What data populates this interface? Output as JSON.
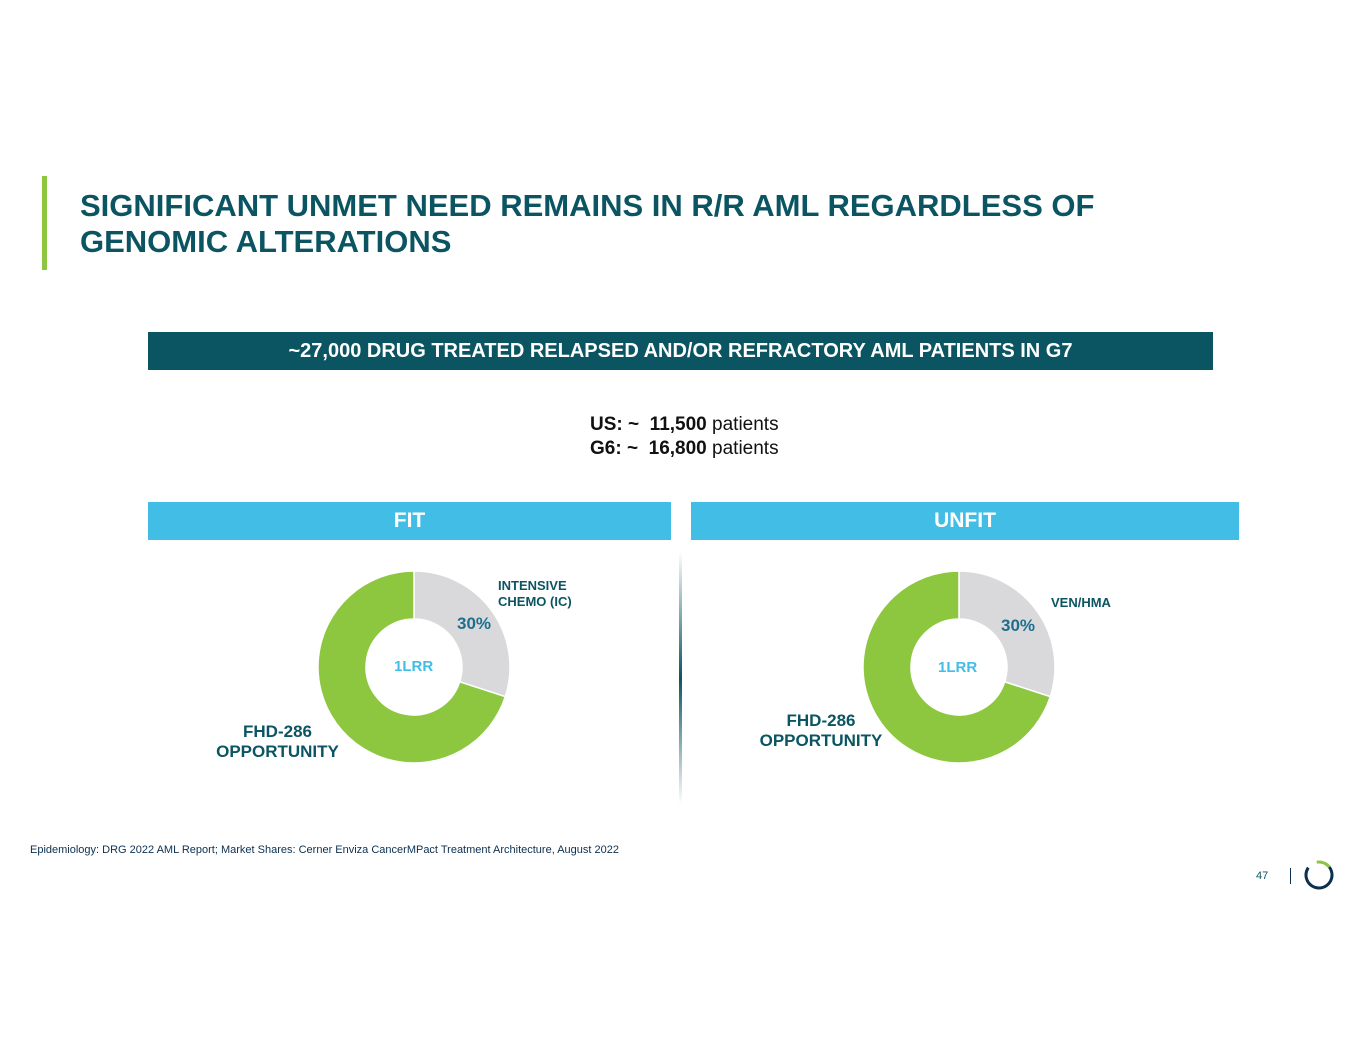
{
  "title": {
    "line1": "SIGNIFICANT UNMET NEED REMAINS IN R/R AML REGARDLESS OF",
    "line2": "GENOMIC ALTERATIONS"
  },
  "banner": "~27,000 DRUG TREATED RELAPSED AND/OR REFRACTORY AML PATIENTS IN G7",
  "stats": [
    {
      "label": "US: ~",
      "value": "11,500",
      "unit": "patients"
    },
    {
      "label": "G6: ~",
      "value": "16,800",
      "unit": "patients"
    }
  ],
  "fit": {
    "header": "FIT",
    "segment_label_line1": "INTENSIVE",
    "segment_label_line2": "CHEMO (IC)",
    "pct": "30%",
    "center": "1LRR",
    "opp_line1": "FHD-286",
    "opp_line2": "OPPORTUNITY"
  },
  "unfit": {
    "header": "UNFIT",
    "segment_label": "VEN/HMA",
    "pct": "30%",
    "center": "1LRR",
    "opp_line1": "FHD-286",
    "opp_line2": "OPPORTUNITY"
  },
  "chart_data": [
    {
      "type": "pie",
      "title": "FIT",
      "categories": [
        "INTENSIVE CHEMO (IC)",
        "FHD-286 OPPORTUNITY"
      ],
      "values": [
        30,
        70
      ],
      "center_label": "1LRR",
      "colors": [
        "#d9d9db",
        "#8dc63f"
      ]
    },
    {
      "type": "pie",
      "title": "UNFIT",
      "categories": [
        "VEN/HMA",
        "FHD-286 OPPORTUNITY"
      ],
      "values": [
        30,
        70
      ],
      "center_label": "1LRR",
      "colors": [
        "#d9d9db",
        "#8dc63f"
      ]
    }
  ],
  "footnote": "Epidemiology: DRG 2022 AML Report; Market Shares: Cerner Enviza CancerMPact Treatment Architecture, August 2022",
  "page_number": "47",
  "colors": {
    "primary": "#0b5563",
    "accent": "#8dc63f",
    "header_blue": "#41bde6",
    "gray": "#d9d9db"
  }
}
